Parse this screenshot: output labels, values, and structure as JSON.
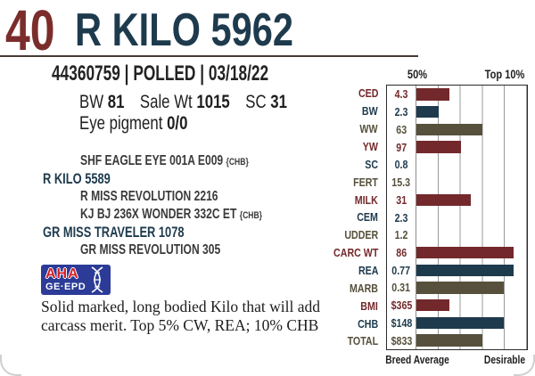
{
  "palette": {
    "maroon": "#73292b",
    "navy": "#1e3a4d",
    "olive": "#56503c",
    "lot_red": "#7b2d2b",
    "logo_blue": "#2b3b97",
    "logo_red": "#d31f2b",
    "rule_color": "#463a34",
    "grid_gray": "#9a9a9a"
  },
  "header": {
    "lot_number": "40",
    "animal_name": "R KILO 5962",
    "registration_line": "44360759 | POLLED | 03/18/22"
  },
  "stats": {
    "bw_label": "BW",
    "bw_value": "81",
    "sale_wt_label": "Sale Wt",
    "sale_wt_value": "1015",
    "sc_label": "SC",
    "sc_value": "31",
    "eye_pigment_label": "Eye pigment",
    "eye_pigment_value": "0/0"
  },
  "pedigree": [
    {
      "name": "SHF EAGLE EYE 001A E009",
      "tag": "{CHB}",
      "role": "sire-sire"
    },
    {
      "name": "R KILO 5589",
      "tag": "",
      "role": "sire"
    },
    {
      "name": "R MISS REVOLUTION 2216",
      "tag": "",
      "role": "sire-dam"
    },
    {
      "name": "KJ BJ 236X WONDER 332C ET",
      "tag": "{CHB}",
      "role": "dam-sire"
    },
    {
      "name": "GR MISS TRAVELER 1078",
      "tag": "",
      "role": "dam"
    },
    {
      "name": "GR MISS REVOLUTION 305",
      "tag": "",
      "role": "dam-dam"
    }
  ],
  "logo": {
    "line1": "AHA",
    "line2": "GE·EPD"
  },
  "description_lines": [
    "Solid marked, long bodied Kilo that will add",
    "carcass merit. Top 5% CW, REA; 10% CHB"
  ],
  "chart_data": {
    "type": "bar",
    "title": "EPD percentile chart",
    "orientation": "horizontal",
    "x_axis": {
      "left_tick_label": "50%",
      "right_tick_label": "Top 10%",
      "gridline_interval_pct": 20
    },
    "footer": {
      "left_label": "Breed Average",
      "right_label": "Desirable"
    },
    "rows": [
      {
        "label": "CED",
        "value": "4.3",
        "color": "maroon",
        "bar_pct": 30,
        "percentile_top": "35%"
      },
      {
        "label": "BW",
        "value": "2.3",
        "color": "navy",
        "bar_pct": 20,
        "percentile_top": "40%"
      },
      {
        "label": "WW",
        "value": "63",
        "color": "olive",
        "bar_pct": 60,
        "percentile_top": "20%"
      },
      {
        "label": "YW",
        "value": "97",
        "color": "maroon",
        "bar_pct": 40,
        "percentile_top": "30%"
      },
      {
        "label": "SC",
        "value": "0.8",
        "color": "navy",
        "bar_pct": 0,
        "percentile_top": ""
      },
      {
        "label": "FERT",
        "value": "15.3",
        "color": "olive",
        "bar_pct": 0,
        "percentile_top": ""
      },
      {
        "label": "MILK",
        "value": "31",
        "color": "maroon",
        "bar_pct": 49,
        "percentile_top": "25%"
      },
      {
        "label": "CEM",
        "value": "2.3",
        "color": "navy",
        "bar_pct": 0,
        "percentile_top": ""
      },
      {
        "label": "UDDER",
        "value": "1.2",
        "color": "olive",
        "bar_pct": 0,
        "percentile_top": ""
      },
      {
        "label": "CARC WT",
        "value": "86",
        "color": "maroon",
        "bar_pct": 88,
        "percentile_top": "5%"
      },
      {
        "label": "REA",
        "value": "0.77",
        "color": "navy",
        "bar_pct": 88,
        "percentile_top": "5%"
      },
      {
        "label": "MARB",
        "value": "0.31",
        "color": "olive",
        "bar_pct": 79,
        "percentile_top": "10%"
      },
      {
        "label": "BMI",
        "value": "$365",
        "color": "maroon",
        "bar_pct": 30,
        "percentile_top": "35%"
      },
      {
        "label": "CHB",
        "value": "$148",
        "color": "navy",
        "bar_pct": 79,
        "percentile_top": "10%"
      },
      {
        "label": "TOTAL",
        "value": "$833",
        "color": "olive",
        "bar_pct": 60,
        "percentile_top": "20%"
      }
    ]
  }
}
